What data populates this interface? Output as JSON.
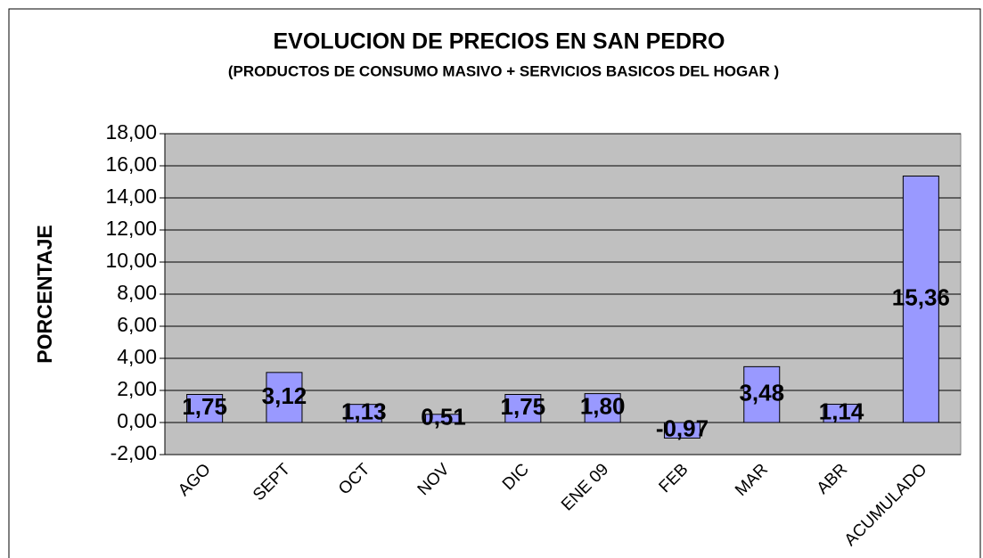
{
  "chart_data": {
    "type": "bar",
    "title": "EVOLUCION DE PRECIOS EN SAN PEDRO",
    "subtitle": "(PRODUCTOS DE CONSUMO MASIVO  + SERVICIOS BASICOS DEL HOGAR )",
    "y_label": "PORCENTAJE",
    "categories": [
      "AGO",
      "SEPT",
      "OCT",
      "NOV",
      "DIC",
      "ENE 09",
      "FEB",
      "MAR",
      "ABR",
      "ACUMULADO"
    ],
    "values": [
      1.75,
      3.12,
      1.13,
      0.51,
      1.75,
      1.8,
      -0.97,
      3.48,
      1.14,
      15.36
    ],
    "value_labels": [
      "1,75",
      "3,12",
      "1,13",
      "0,51",
      "1,75",
      "1,80",
      "-0,97",
      "3,48",
      "1,14",
      "15,36"
    ],
    "color": "#9999ff",
    "plot_background": "#c0c0c0",
    "ylim": [
      -2,
      18
    ],
    "yticks": [
      {
        "value": -2,
        "label": "-2,00"
      },
      {
        "value": 0,
        "label": "0,00"
      },
      {
        "value": 2,
        "label": "2,00"
      },
      {
        "value": 4,
        "label": "4,00"
      },
      {
        "value": 6,
        "label": "6,00"
      },
      {
        "value": 8,
        "label": "8,00"
      },
      {
        "value": 10,
        "label": "10,00"
      },
      {
        "value": 12,
        "label": "12,00"
      },
      {
        "value": 14,
        "label": "14,00"
      },
      {
        "value": 16,
        "label": "16,00"
      },
      {
        "value": 18,
        "label": "18,00"
      }
    ],
    "grid": true
  }
}
